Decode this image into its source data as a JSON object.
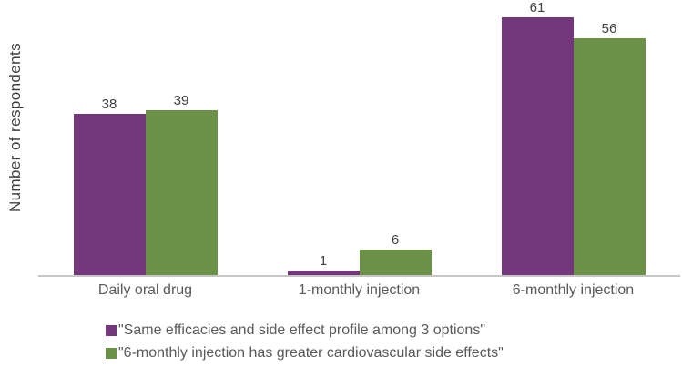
{
  "chart_data": {
    "type": "bar",
    "title": "",
    "xlabel": "",
    "ylabel": "Number of respondents",
    "categories": [
      "Daily oral drug",
      "1-monthly injection",
      "6-monthly injection"
    ],
    "series": [
      {
        "name": "\"Same efficacies and side effect profile among 3 options\"",
        "color": "#74377B",
        "values": [
          38,
          1,
          61
        ]
      },
      {
        "name": "\"6-monthly injection has greater cardiovascular side effects\"",
        "color": "#6A9147",
        "values": [
          39,
          6,
          56
        ]
      }
    ],
    "ylim": [
      0,
      65
    ],
    "grid": false,
    "data_labels": true,
    "legend_position": "bottom-left"
  },
  "colors": {
    "value_label": "#404040",
    "axis_text": "#595959",
    "ylabel_text": "#404040",
    "axis_line": "#C6C6C6",
    "background": "#FFFFFF"
  }
}
